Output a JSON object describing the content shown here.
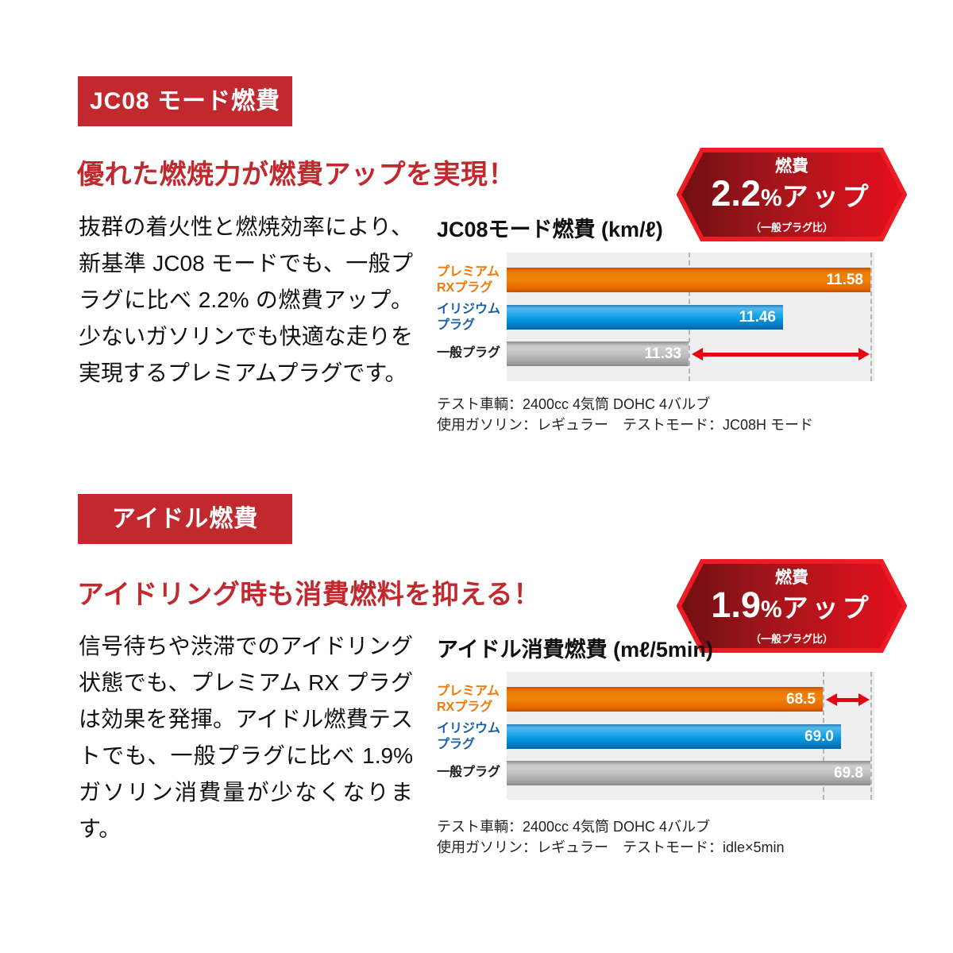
{
  "colors": {
    "badge_red": "#c2292e",
    "heading_red": "#c2292e",
    "arrow_red": "#e60012",
    "hex_border_red": "#ec1b24",
    "bar_orange": "#ef7a00",
    "bar_blue": "#009ce8",
    "bar_gray": "#b5b5b5",
    "label_orange": "#f0780a",
    "label_blue": "#1c5fa9",
    "plot_background": "#efefef"
  },
  "sections": [
    {
      "badge_label": "JC08 モード燃費",
      "heading": "優れた燃焼力が燃費アップを実現！",
      "body": "抜群の着火性と燃焼効率により、新基準 JC08 モードでも、一般プラグに比べ 2.2% の燃費アップ。少ないガソリンでも快適な走りを実現するプレミアムプラグです。",
      "badge_hex": {
        "top": "燃費",
        "value": "2.2",
        "pct": "%",
        "suffix": "アップ",
        "note": "（一般プラグ比）"
      },
      "footnotes": [
        "テスト車輌：2400cc 4気筒 DOHC 4バルブ",
        "使用ガソリン：レギュラー　テストモード：JC08H モード"
      ]
    },
    {
      "badge_label": "アイドル燃費",
      "heading": "アイドリング時も消費燃料を抑える！",
      "body": "信号待ちや渋滞でのアイドリング状態でも、プレミアム RX プラグは効果を発揮。アイドル燃費テストでも、一般プラグに比べ 1.9% ガソリン消費量が少なくなります。",
      "badge_hex": {
        "top": "燃費",
        "value": "1.9",
        "pct": "%",
        "suffix": "アップ",
        "note": "（一般プラグ比）"
      },
      "footnotes": [
        "テスト車輌：2400cc 4気筒 DOHC 4バルブ",
        "使用ガソリン：レギュラー　テストモード：idle×5min"
      ]
    }
  ],
  "chart_data": [
    {
      "type": "bar",
      "orientation": "horizontal",
      "title": "JC08モード燃費 (km/ℓ)",
      "unit": "km/ℓ",
      "categories": [
        "プレミアムRXプラグ",
        "イリジウムプラグ",
        "一般プラグ"
      ],
      "row_labels": [
        [
          "プレミアム",
          "RXプラグ"
        ],
        [
          "イリジウム",
          "プラグ"
        ],
        [
          "一般プラグ"
        ]
      ],
      "values": [
        11.58,
        11.46,
        11.33
      ],
      "display_values": [
        "11.58",
        "11.46",
        "11.33"
      ],
      "xlim": [
        11.08,
        11.585
      ],
      "grid": false,
      "legend": false,
      "dashed_lines_at": [
        11.33,
        11.58
      ],
      "arrow": {
        "from": 11.33,
        "to": 11.58,
        "row": 2
      },
      "annotation": "燃費2.2%アップ（一般プラグ比）"
    },
    {
      "type": "bar",
      "orientation": "horizontal",
      "title": "アイドル消費燃費 (mℓ/5min)",
      "unit": "mℓ/5min",
      "categories": [
        "プレミアムRXプラグ",
        "イリジウムプラグ",
        "一般プラグ"
      ],
      "row_labels": [
        [
          "プレミアム",
          "RXプラグ"
        ],
        [
          "イリジウム",
          "プラグ"
        ],
        [
          "一般プラグ"
        ]
      ],
      "values": [
        68.5,
        69.0,
        69.8
      ],
      "display_values": [
        "68.5",
        "69.0",
        "69.8"
      ],
      "xlim": [
        59.9,
        69.9
      ],
      "grid": false,
      "legend": false,
      "dashed_lines_at": [
        68.5,
        69.8
      ],
      "arrow": {
        "from": 68.5,
        "to": 69.8,
        "row": 0
      },
      "annotation": "燃費1.9%アップ（一般プラグ比）"
    }
  ]
}
